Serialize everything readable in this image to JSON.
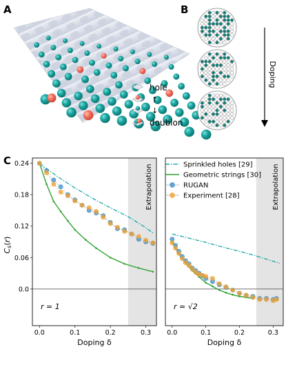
{
  "panel_labels": {
    "a": "A",
    "b": "B",
    "c": "C"
  },
  "panel_a": {
    "legend": [
      {
        "label": "hole",
        "icon": "hole-icon"
      },
      {
        "label": "↑",
        "icon": "spin-up-icon"
      },
      {
        "label": "↓",
        "icon": "spin-down-icon"
      },
      {
        "label": "doublon",
        "icon": "doublon-icon"
      }
    ],
    "colors": {
      "teal": "#169a9a",
      "red": "#f07060",
      "surface": "#dfe3ee"
    }
  },
  "panel_b": {
    "doping_label": "Doping",
    "colors": {
      "filled": "#137f7a",
      "empty": "#ffffff",
      "edge": "#666666"
    }
  },
  "ylabel": "C_s(r)",
  "chart_data": [
    {
      "type": "line",
      "subplot": "left",
      "annotation": "r = 1",
      "extrapolation_label": "Extrapolation",
      "extrapolation_range": [
        0.25,
        0.33
      ],
      "xlabel": "Doping δ",
      "ylabel": "Cs(r)",
      "xlim": [
        -0.02,
        0.33
      ],
      "ylim": [
        -0.07,
        0.25
      ],
      "xticks": [
        "0.0",
        "0.1",
        "0.2",
        "0.3"
      ],
      "yticks": [
        "0.24",
        "0.18",
        "0.12",
        "0.06",
        "0.0"
      ],
      "series": [
        {
          "name": "Sprinkled holes [29]",
          "style": "dashdot",
          "color": "#1aa5a5",
          "x": [
            0.0,
            0.05,
            0.1,
            0.15,
            0.2,
            0.25,
            0.3,
            0.32
          ],
          "y": [
            0.24,
            0.215,
            0.193,
            0.173,
            0.155,
            0.138,
            0.117,
            0.107
          ]
        },
        {
          "name": "Geometric strings [30]",
          "style": "solid",
          "color": "#2ea02e",
          "x": [
            0.0,
            0.02,
            0.04,
            0.06,
            0.08,
            0.1,
            0.13,
            0.16,
            0.2,
            0.24,
            0.28,
            0.32
          ],
          "y": [
            0.24,
            0.2,
            0.167,
            0.148,
            0.13,
            0.113,
            0.094,
            0.078,
            0.06,
            0.048,
            0.04,
            0.033
          ]
        },
        {
          "name": "RUGAN",
          "style": "marker",
          "color": "#3b8fd0",
          "x": [
            0.0,
            0.02,
            0.04,
            0.06,
            0.08,
            0.1,
            0.12,
            0.14,
            0.16,
            0.18,
            0.2,
            0.22,
            0.24,
            0.26,
            0.28,
            0.3,
            0.32
          ],
          "y": [
            0.24,
            0.226,
            0.208,
            0.195,
            0.18,
            0.17,
            0.16,
            0.15,
            0.145,
            0.14,
            0.127,
            0.115,
            0.113,
            0.105,
            0.095,
            0.09,
            0.087
          ]
        },
        {
          "name": "Experiment [28]",
          "style": "marker",
          "color": "#f0a030",
          "x": [
            0.0,
            0.02,
            0.04,
            0.06,
            0.08,
            0.1,
            0.12,
            0.14,
            0.16,
            0.18,
            0.2,
            0.22,
            0.24,
            0.26,
            0.28,
            0.3,
            0.32
          ],
          "y": [
            0.24,
            0.222,
            0.2,
            0.185,
            0.178,
            0.168,
            0.16,
            0.155,
            0.148,
            0.137,
            0.125,
            0.118,
            0.11,
            0.105,
            0.1,
            0.093,
            0.088
          ]
        }
      ]
    },
    {
      "type": "line",
      "subplot": "right",
      "annotation": "r = √2",
      "extrapolation_label": "Extrapolation",
      "extrapolation_range": [
        0.25,
        0.33
      ],
      "xlabel": "Doping δ",
      "xlim": [
        -0.02,
        0.33
      ],
      "ylim": [
        -0.07,
        0.25
      ],
      "xticks": [
        "0.0",
        "0.1",
        "0.2",
        "0.3"
      ],
      "series": [
        {
          "name": "Sprinkled holes [29]",
          "style": "dashdot",
          "color": "#1aa5a5",
          "x": [
            0.0,
            0.05,
            0.1,
            0.15,
            0.2,
            0.25,
            0.3,
            0.32
          ],
          "y": [
            0.105,
            0.097,
            0.089,
            0.08,
            0.072,
            0.063,
            0.053,
            0.049
          ]
        },
        {
          "name": "Geometric strings [30]",
          "style": "solid",
          "color": "#2ea02e",
          "x": [
            0.0,
            0.02,
            0.04,
            0.06,
            0.08,
            0.1,
            0.12,
            0.14,
            0.16,
            0.18,
            0.2,
            0.22,
            0.24
          ],
          "y": [
            0.09,
            0.067,
            0.05,
            0.035,
            0.023,
            0.012,
            0.005,
            -0.002,
            -0.007,
            -0.011,
            -0.014,
            -0.016,
            -0.018
          ]
        },
        {
          "name": "RUGAN",
          "style": "marker",
          "color": "#3b8fd0",
          "x": [
            0.0,
            0.01,
            0.02,
            0.03,
            0.04,
            0.05,
            0.06,
            0.07,
            0.08,
            0.09,
            0.1,
            0.12,
            0.14,
            0.16,
            0.18,
            0.2,
            0.22,
            0.24,
            0.26,
            0.28,
            0.3,
            0.31
          ],
          "y": [
            0.095,
            0.083,
            0.072,
            0.062,
            0.054,
            0.048,
            0.04,
            0.035,
            0.03,
            0.025,
            0.02,
            0.014,
            0.008,
            0.003,
            -0.002,
            -0.008,
            -0.012,
            -0.014,
            -0.018,
            -0.018,
            -0.02,
            -0.018
          ]
        },
        {
          "name": "Experiment [28]",
          "style": "marker",
          "color": "#f0a030",
          "x": [
            0.0,
            0.01,
            0.02,
            0.03,
            0.04,
            0.05,
            0.06,
            0.07,
            0.08,
            0.09,
            0.1,
            0.12,
            0.14,
            0.16,
            0.18,
            0.2,
            0.22,
            0.24,
            0.26,
            0.28,
            0.3,
            0.31
          ],
          "y": [
            0.088,
            0.078,
            0.068,
            0.058,
            0.05,
            0.045,
            0.038,
            0.032,
            0.028,
            0.026,
            0.024,
            0.02,
            0.01,
            0.004,
            -0.002,
            -0.008,
            -0.012,
            -0.016,
            -0.02,
            -0.02,
            -0.022,
            -0.02
          ]
        }
      ]
    }
  ]
}
